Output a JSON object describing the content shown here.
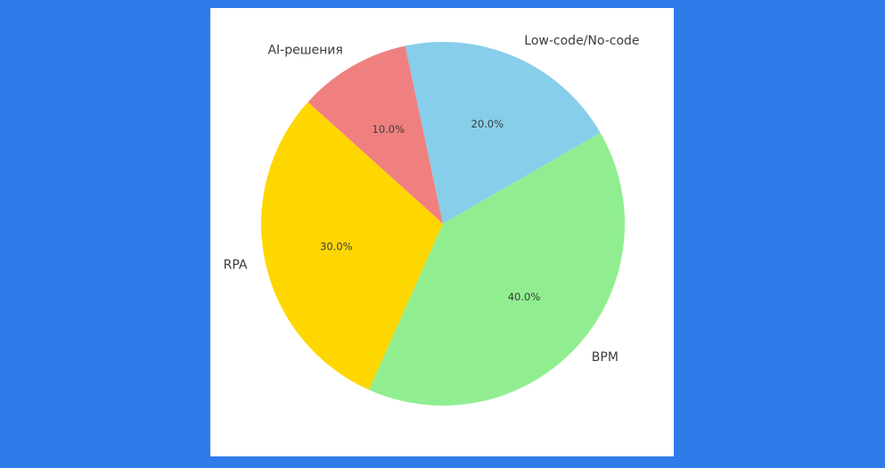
{
  "figure": {
    "background_color": "#2e7be9",
    "panel_color": "#ffffff",
    "text_color": "#3b3b3b"
  },
  "chart_data": {
    "type": "pie",
    "title": "",
    "legend": "none",
    "start_angle": 30,
    "direction": "counterclockwise",
    "label_distance": 1.1,
    "pct_distance": 0.6,
    "categories": [
      "Low-code/No-code",
      "AI-решения",
      "RPA",
      "BPM"
    ],
    "values": [
      20.0,
      10.0,
      30.0,
      40.0
    ],
    "slices": [
      {
        "label": "Low-code/No-code",
        "value": 20.0,
        "pct_label": "20.0%",
        "color": "#87ceeb"
      },
      {
        "label": "AI-решения",
        "value": 10.0,
        "pct_label": "10.0%",
        "color": "#f08080"
      },
      {
        "label": "RPA",
        "value": 30.0,
        "pct_label": "30.0%",
        "color": "#ffd700"
      },
      {
        "label": "BPM",
        "value": 40.0,
        "pct_label": "40.0%",
        "color": "#90ee90"
      }
    ]
  }
}
